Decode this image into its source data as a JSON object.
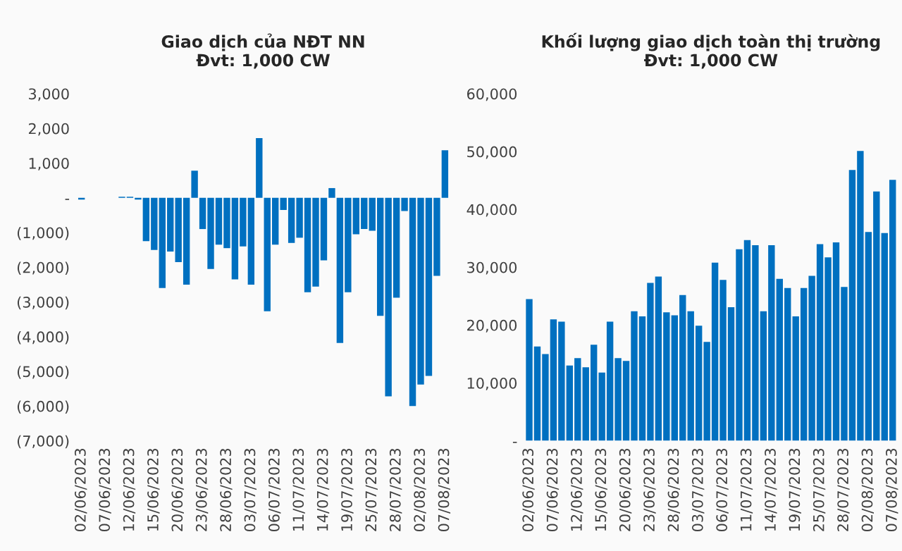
{
  "chart_data": [
    {
      "type": "bar",
      "title": "Giao dịch của NĐT NN",
      "subtitle": "Đvt: 1,000 CW",
      "categories": [
        "02/06/2023",
        null,
        null,
        "07/06/2023",
        null,
        null,
        "12/06/2023",
        null,
        null,
        "15/06/2023",
        null,
        null,
        "20/06/2023",
        null,
        null,
        "23/06/2023",
        null,
        null,
        "28/06/2023",
        null,
        null,
        "03/07/2023",
        null,
        null,
        "06/07/2023",
        null,
        null,
        "11/07/2023",
        null,
        null,
        "14/07/2023",
        null,
        null,
        "19/07/2023",
        null,
        null,
        "25/07/2023",
        null,
        null,
        "28/07/2023",
        null,
        null,
        "02/08/2023",
        null,
        null,
        "07/08/2023"
      ],
      "series": [
        {
          "color": "#0070c0",
          "values": [
            -50,
            0,
            0,
            0,
            0,
            30,
            30,
            -50,
            -1250,
            -1500,
            -2600,
            -1550,
            -1850,
            -2500,
            780,
            -900,
            -2050,
            -1350,
            -1450,
            -2350,
            -1400,
            -2500,
            1720,
            -3270,
            -1350,
            -350,
            -1300,
            -1150,
            -2720,
            -2560,
            -1800,
            280,
            -4180,
            -2720,
            -1050,
            -900,
            -950,
            -3400,
            -5720,
            -2880,
            -380,
            -6000,
            -5380,
            -5130,
            -2250,
            1370
          ]
        }
      ],
      "ylim": [
        -7000,
        3000
      ],
      "yticks": [
        {
          "value": -7000,
          "label": "(7,000)"
        },
        {
          "value": -6000,
          "label": "(6,000)"
        },
        {
          "value": -5000,
          "label": "(5,000)"
        },
        {
          "value": -4000,
          "label": "(4,000)"
        },
        {
          "value": -3000,
          "label": "(3,000)"
        },
        {
          "value": -2000,
          "label": "(2,000)"
        },
        {
          "value": -1000,
          "label": "(1,000)"
        },
        {
          "value": 0,
          "label": "-"
        },
        {
          "value": 1000,
          "label": "1,000"
        },
        {
          "value": 2000,
          "label": "2,000"
        },
        {
          "value": 3000,
          "label": "3,000"
        }
      ],
      "grid": false,
      "legend": false
    },
    {
      "type": "bar",
      "title": "Khối lượng giao dịch toàn thị trường",
      "subtitle": "Đvt: 1,000 CW",
      "categories": [
        "02/06/2023",
        null,
        null,
        "07/06/2023",
        null,
        null,
        "12/06/2023",
        null,
        null,
        "15/06/2023",
        null,
        null,
        "20/06/2023",
        null,
        null,
        "23/06/2023",
        null,
        null,
        "28/06/2023",
        null,
        null,
        "03/07/2023",
        null,
        null,
        "06/07/2023",
        null,
        null,
        "11/07/2023",
        null,
        null,
        "14/07/2023",
        null,
        null,
        "19/07/2023",
        null,
        null,
        "25/07/2023",
        null,
        null,
        "28/07/2023",
        null,
        null,
        "02/08/2023",
        null,
        null,
        "07/08/2023"
      ],
      "series": [
        {
          "color": "#0070c0",
          "values": [
            24500,
            16300,
            15000,
            21000,
            20600,
            13000,
            14300,
            12700,
            16600,
            11800,
            20600,
            14300,
            13800,
            22400,
            21500,
            27300,
            28400,
            22200,
            21700,
            25200,
            22400,
            19900,
            17100,
            30800,
            27800,
            23100,
            33100,
            34700,
            33800,
            22400,
            33800,
            28000,
            26400,
            21500,
            26400,
            28500,
            34000,
            31700,
            34300,
            26600,
            46800,
            50100,
            36100,
            43100,
            35900,
            45100
          ]
        }
      ],
      "ylim": [
        0,
        60000
      ],
      "yticks": [
        {
          "value": 0,
          "label": "-"
        },
        {
          "value": 10000,
          "label": "10,000"
        },
        {
          "value": 20000,
          "label": "20,000"
        },
        {
          "value": 30000,
          "label": "30,000"
        },
        {
          "value": 40000,
          "label": "40,000"
        },
        {
          "value": 50000,
          "label": "50,000"
        },
        {
          "value": 60000,
          "label": "60,000"
        }
      ],
      "grid": false,
      "legend": false
    }
  ]
}
